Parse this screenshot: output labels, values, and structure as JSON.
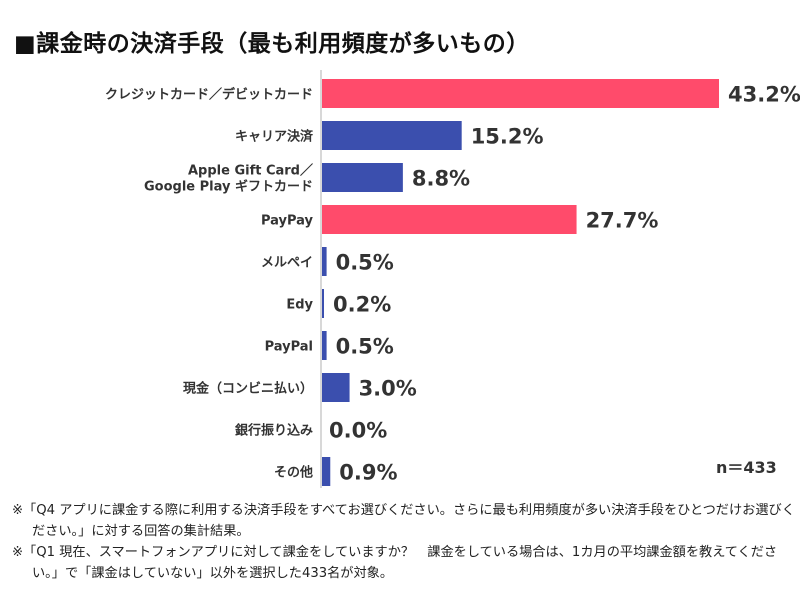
{
  "title": "■課金時の決済手段（最も利用頻度が多いもの）",
  "colors": {
    "highlight": "#ff4b6b",
    "default": "#3b4fae",
    "axis": "#cccccc",
    "text": "#333333"
  },
  "chart_data": {
    "type": "bar",
    "orientation": "horizontal",
    "categories": [
      [
        "クレジットカード／デビットカード"
      ],
      [
        "キャリア決済"
      ],
      [
        "Apple Gift Card／",
        "Google Play ギフトカード"
      ],
      [
        "PayPay"
      ],
      [
        "メルペイ"
      ],
      [
        "Edy"
      ],
      [
        "PayPal"
      ],
      [
        "現金（コンビニ払い）"
      ],
      [
        "銀行振り込み"
      ],
      [
        "その他"
      ]
    ],
    "values": [
      43.2,
      15.2,
      8.8,
      27.7,
      0.5,
      0.2,
      0.5,
      3.0,
      0.0,
      0.9
    ],
    "value_labels": [
      "43.2%",
      "15.2%",
      "8.8%",
      "27.7%",
      "0.5%",
      "0.2%",
      "0.5%",
      "3.0%",
      "0.0%",
      "0.9%"
    ],
    "highlighted": [
      true,
      false,
      false,
      true,
      false,
      false,
      false,
      false,
      false,
      false
    ],
    "xlim": [
      0,
      45
    ],
    "grid": false,
    "legend": "none"
  },
  "sample_size": "n＝433",
  "notes": [
    "※「Q4 アプリに課金する際に利用する決済手段をすべてお選びください。さらに最も利用頻度が多い決済手段をひとつだけお選びください。」に対する回答の集計結果。",
    "※「Q1 現在、スマートフォンアプリに対して課金をしていますか？　課金をしている場合は、1カ月の平均課金額を教えてください。」で「課金はしていない」以外を選択した433名が対象。"
  ]
}
